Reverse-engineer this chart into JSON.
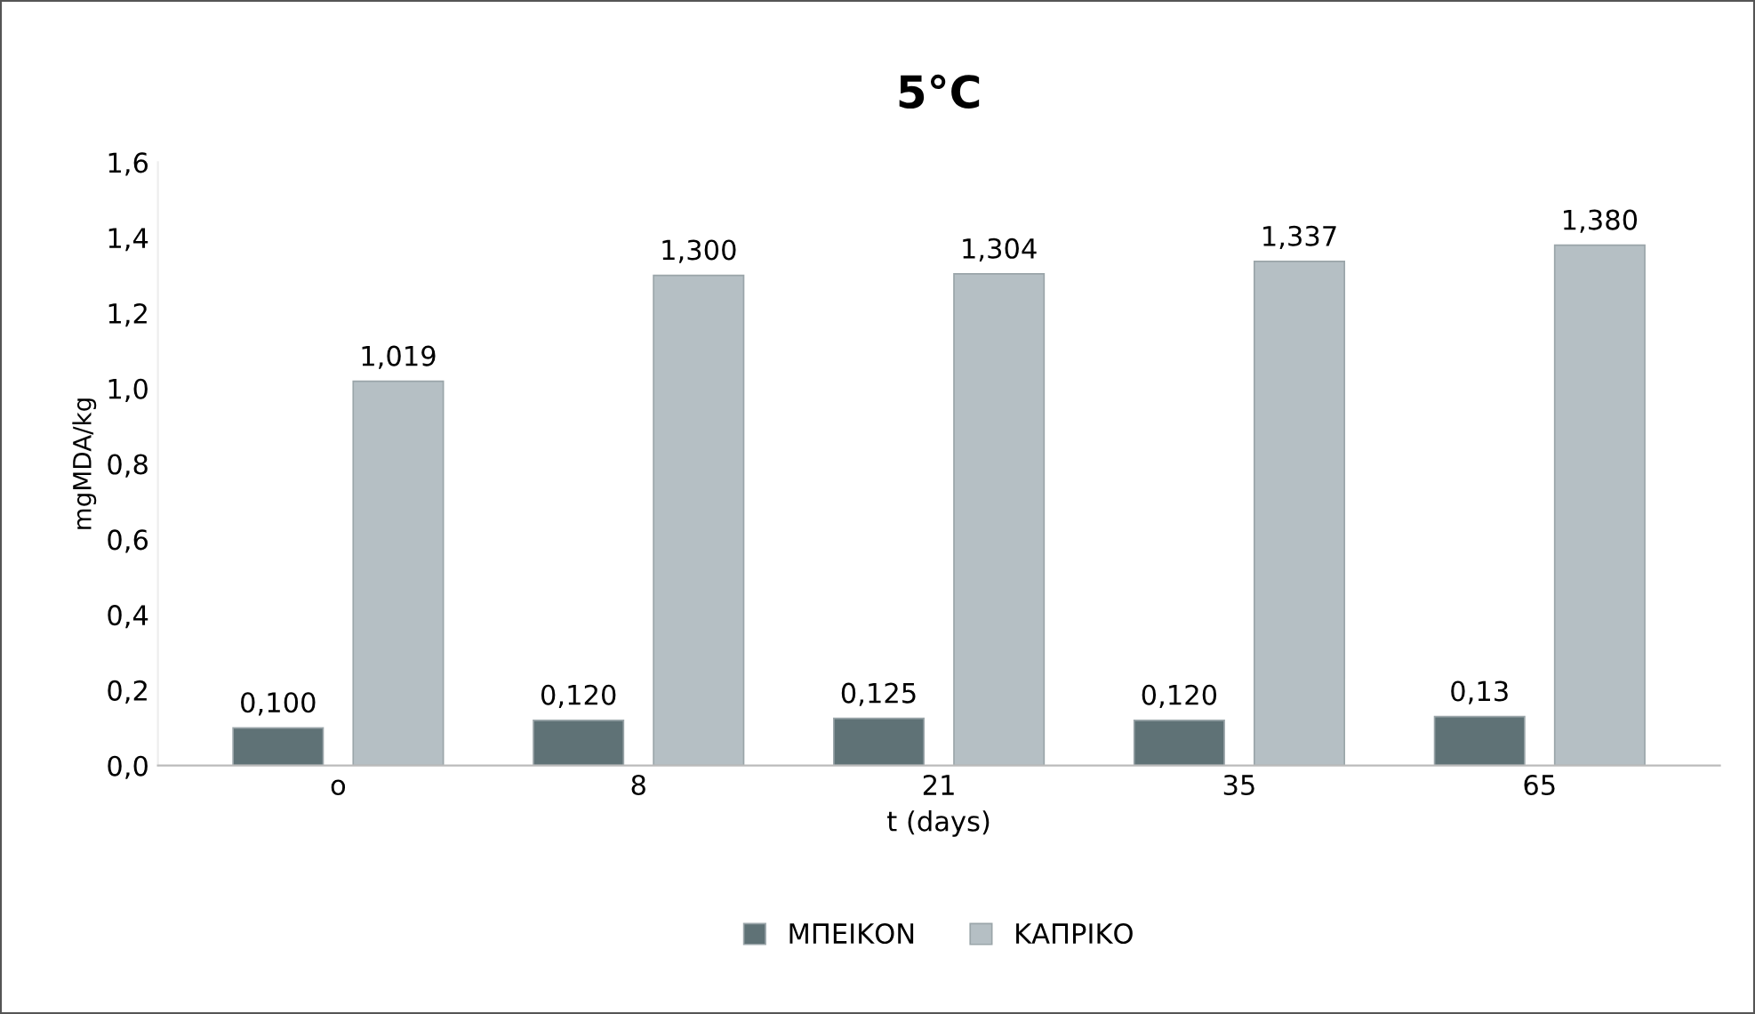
{
  "chart_data": {
    "type": "bar",
    "title": "5°C",
    "xlabel": "t (days)",
    "ylabel": "mgMDA/kg",
    "categories": [
      "o",
      "8",
      "21",
      "35",
      "65"
    ],
    "series": [
      {
        "name": "ΜΠΕΙΚΟΝ",
        "color": "#5f7276",
        "values": [
          0.1,
          0.12,
          0.125,
          0.12,
          0.13
        ],
        "value_labels": [
          "0,100",
          "0,120",
          "0,125",
          "0,120",
          "0,13"
        ]
      },
      {
        "name": "ΚΑΠΡΙΚΟ",
        "color": "#b5bfc4",
        "values": [
          1.019,
          1.3,
          1.304,
          1.337,
          1.38
        ],
        "value_labels": [
          "1,019",
          "1,300",
          "1,304",
          "1,337",
          "1,380"
        ]
      }
    ],
    "ylim": [
      0,
      1.6
    ],
    "yticks": [
      {
        "value": 0,
        "label": "0,0"
      },
      {
        "value": 0.2,
        "label": "0,2"
      },
      {
        "value": 0.4,
        "label": "0,4"
      },
      {
        "value": 0.6,
        "label": "0,6"
      },
      {
        "value": 0.8,
        "label": "0,8"
      },
      {
        "value": 1.0,
        "label": "1,0"
      },
      {
        "value": 1.2,
        "label": "1,2"
      },
      {
        "value": 1.4,
        "label": "1,4"
      },
      {
        "value": 1.6,
        "label": "1,6"
      }
    ],
    "grid": false,
    "legend": "bottom"
  }
}
